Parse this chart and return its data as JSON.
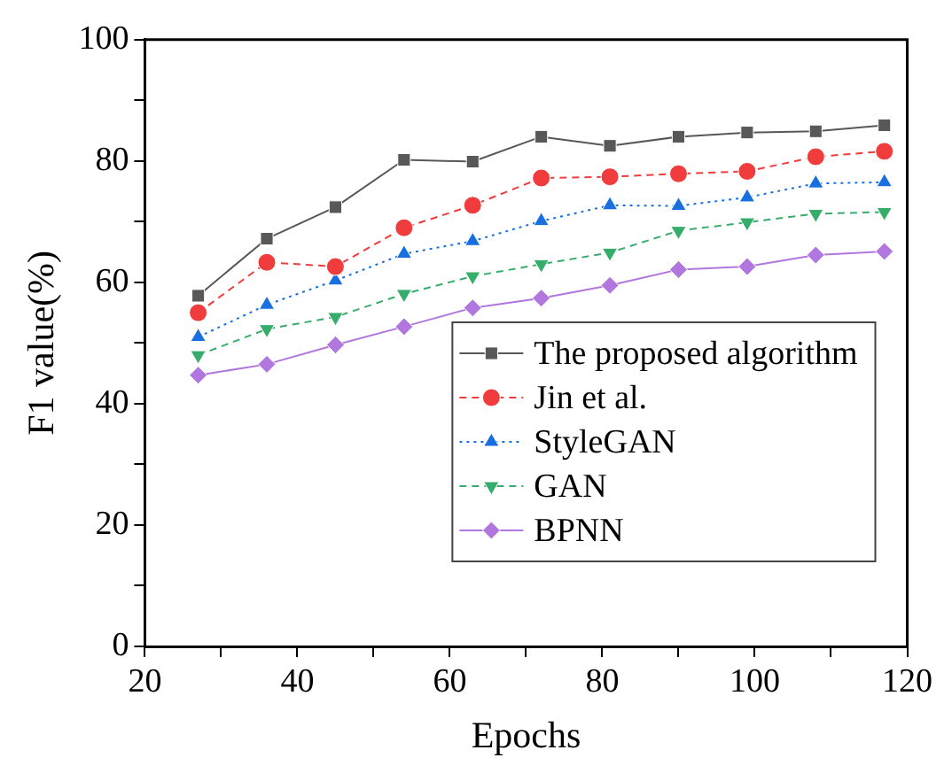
{
  "chart_data": {
    "type": "line",
    "xlabel": "Epochs",
    "ylabel": "F1 value(%)",
    "x": [
      27,
      36,
      45,
      54,
      63,
      72,
      81,
      90,
      99,
      108,
      117
    ],
    "xlim": [
      20,
      120
    ],
    "xticks": [
      20,
      {
        "value": 30,
        "label": null
      },
      40,
      {
        "value": 50,
        "label": null
      },
      60,
      {
        "value": 70,
        "label": null
      },
      80,
      {
        "value": 90,
        "label": null
      },
      100,
      {
        "value": 110,
        "label": null
      },
      120
    ],
    "ylim": [
      0,
      100
    ],
    "yticks": [
      0,
      {
        "value": 10,
        "label": null
      },
      20,
      {
        "value": 30,
        "label": null
      },
      40,
      {
        "value": 50,
        "label": null
      },
      60,
      {
        "value": 70,
        "label": null
      },
      80,
      {
        "value": 90,
        "label": null
      },
      100
    ],
    "grid": false,
    "legend": "bottom right",
    "series": [
      {
        "name": "The proposed algorithm",
        "color": "#585858",
        "marker": "square",
        "line_style": "solid",
        "values": [
          57.8,
          67.2,
          72.4,
          80.2,
          79.9,
          84,
          82.5,
          84,
          84.7,
          84.9,
          85.9
        ]
      },
      {
        "name": "Jin et al.",
        "color": "#f03c3c",
        "marker": "circle",
        "line_style": "dashed",
        "values": [
          55,
          63.3,
          62.6,
          69,
          72.7,
          77.2,
          77.4,
          77.9,
          78.3,
          80.7,
          81.6
        ]
      },
      {
        "name": "StyleGAN",
        "color": "#1a6fdf",
        "marker": "triangle",
        "line_style": "dotted",
        "values": [
          51,
          56.3,
          60.3,
          64.7,
          66.8,
          70.1,
          72.7,
          72.6,
          74,
          76.3,
          76.5
        ]
      },
      {
        "name": "GAN",
        "color": "#37ad6b",
        "marker": "triangle_down",
        "line_style": "dashed",
        "values": [
          48,
          52.3,
          54.3,
          58.1,
          61,
          63,
          64.9,
          68.5,
          69.9,
          71.3,
          71.6
        ]
      },
      {
        "name": "BPNN",
        "color": "#b177de",
        "marker": "diamond",
        "line_style": "solid",
        "values": [
          44.7,
          46.5,
          49.7,
          52.7,
          55.8,
          57.4,
          59.5,
          62.1,
          62.6,
          64.5,
          65.1
        ]
      }
    ]
  }
}
